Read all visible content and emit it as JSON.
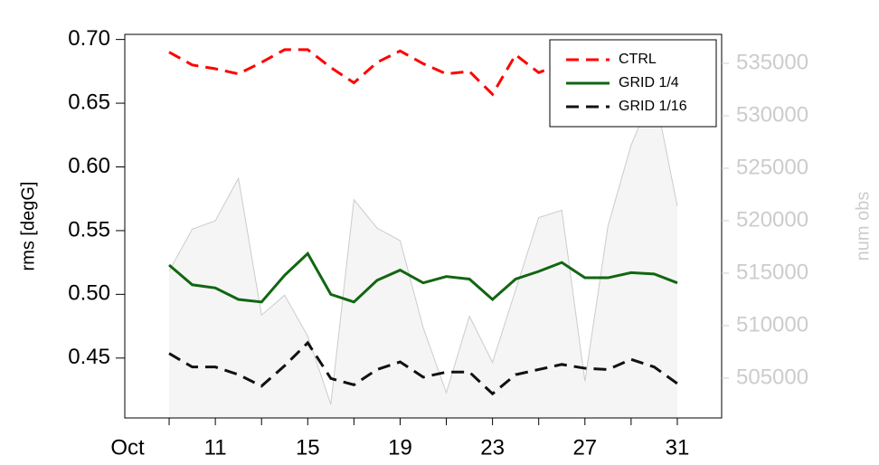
{
  "chart_data": {
    "type": "line",
    "ylabel": "rms [degG]",
    "y2label": "num obs",
    "x": [
      9,
      10,
      11,
      12,
      13,
      14,
      15,
      16,
      17,
      18,
      19,
      20,
      21,
      22,
      23,
      24,
      25,
      26,
      27,
      28,
      29,
      30,
      31
    ],
    "xlim": [
      7.08,
      32.92
    ],
    "xticks": [
      {
        "value": 7.2,
        "label": "Oct"
      },
      11,
      15,
      19,
      23,
      27,
      31
    ],
    "xminorticks": [
      9,
      13,
      17,
      21,
      25,
      29
    ],
    "ylim": [
      0.403,
      0.704
    ],
    "yticks": [
      {
        "value": 0.45,
        "label": "0.45"
      },
      {
        "value": 0.5,
        "label": "0.50"
      },
      0.55,
      {
        "value": 0.6,
        "label": "0.60"
      },
      0.65,
      {
        "value": 0.7,
        "label": "0.70"
      }
    ],
    "y2lim": [
      501200,
      537760
    ],
    "y2ticks": [
      505000,
      510000,
      515000,
      520000,
      525000,
      530000,
      535000
    ],
    "legend": "top-right",
    "series": [
      {
        "name": "num obs",
        "axis": "y2",
        "style": "area",
        "color": "#cccccc",
        "fill": "#f5f5f5",
        "values": [
          515200,
          519200,
          520000,
          524050,
          511000,
          512900,
          509000,
          502500,
          522000,
          519300,
          518100,
          509800,
          503600,
          510900,
          506500,
          513400,
          520300,
          521000,
          504700,
          519500,
          527200,
          532400,
          521400
        ]
      },
      {
        "name": "CTRL",
        "color": "#ff0000",
        "dash": true,
        "values": [
          0.69,
          0.68,
          0.677,
          0.673,
          0.682,
          0.692,
          0.692,
          0.678,
          0.666,
          0.682,
          0.691,
          0.681,
          0.673,
          0.675,
          0.657,
          0.688,
          0.674,
          0.681,
          0.68,
          0.683,
          0.685,
          0.682,
          0.68
        ]
      },
      {
        "name": "GRID 1/4",
        "color": "#116611",
        "dash": false,
        "values": [
          0.523,
          0.5075,
          0.505,
          0.496,
          0.494,
          0.515,
          0.532,
          0.5,
          0.494,
          0.511,
          0.519,
          0.509,
          0.514,
          0.512,
          0.496,
          0.512,
          0.518,
          0.525,
          0.513,
          0.513,
          0.517,
          0.516,
          0.509
        ]
      },
      {
        "name": "GRID 1/16",
        "color": "#111111",
        "dash": true,
        "values": [
          0.4536,
          0.443,
          0.443,
          0.437,
          0.428,
          0.444,
          0.462,
          0.434,
          0.429,
          0.441,
          0.447,
          0.435,
          0.439,
          0.439,
          0.422,
          0.437,
          0.441,
          0.445,
          0.442,
          0.441,
          0.449,
          0.443,
          0.43
        ]
      }
    ]
  }
}
